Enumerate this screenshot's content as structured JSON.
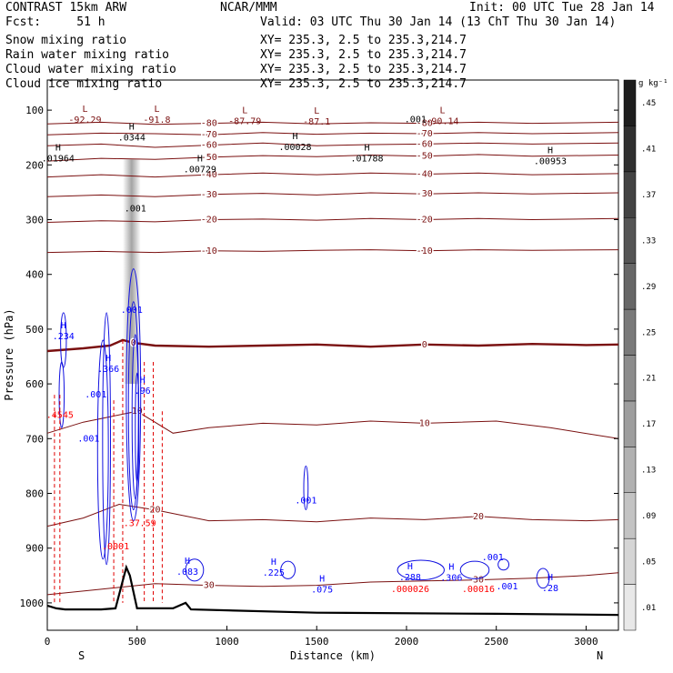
{
  "header": {
    "line1_left": "CONTRAST 15km ARW",
    "line1_center": "NCAR/MMM",
    "line1_right": "Init: 00 UTC Tue 28 Jan 14",
    "fcst": "Fcst:     51 h",
    "valid": "Valid: 03 UTC Thu 30 Jan 14 (13 ChT Thu 30 Jan 14)",
    "fields": [
      {
        "name": "Snow mixing ratio",
        "xy": "XY= 235.3,  2.5 to 235.3,214.7",
        "color": "#000000"
      },
      {
        "name": "Rain water mixing ratio",
        "xy": "XY= 235.3,  2.5 to 235.3,214.7",
        "color": "#ff0000"
      },
      {
        "name": "Cloud water mixing ratio",
        "xy": "XY= 235.3,  2.5 to 235.3,214.7",
        "color": "#0000ff"
      },
      {
        "name": "Cloud ice mixing ratio",
        "xy": "XY= 235.3,  2.5 to 235.3,214.7",
        "color": "#000000"
      }
    ]
  },
  "chart_data": {
    "type": "line",
    "title": "CONTRAST 15km ARW",
    "xlabel": "Distance (km)",
    "ylabel": "Pressure (hPa)",
    "xlim": [
      0,
      3180
    ],
    "ylim": [
      1050,
      45
    ],
    "x_ticks": [
      0,
      500,
      1000,
      1500,
      2000,
      2500,
      3000
    ],
    "y_ticks": [
      100,
      200,
      300,
      400,
      500,
      600,
      700,
      800,
      900,
      1000
    ],
    "x_end_labels": {
      "left": "S",
      "right": "N"
    },
    "colorbar": {
      "unit": "g kg⁻¹",
      "ticks": [
        ".01",
        ".05",
        ".09",
        ".13",
        ".17",
        ".21",
        ".25",
        ".29",
        ".33",
        ".37",
        ".41",
        ".45"
      ]
    },
    "temperature_isotherms": [
      {
        "label": "-80",
        "points": [
          [
            0,
            125
          ],
          [
            300,
            122
          ],
          [
            600,
            126
          ],
          [
            900,
            124
          ],
          [
            1200,
            122
          ],
          [
            1500,
            125
          ],
          [
            1800,
            123
          ],
          [
            2100,
            124
          ],
          [
            2400,
            122
          ],
          [
            2700,
            124
          ],
          [
            3180,
            122
          ]
        ]
      },
      {
        "label": "-70",
        "points": [
          [
            0,
            145
          ],
          [
            300,
            142
          ],
          [
            600,
            143
          ],
          [
            900,
            145
          ],
          [
            1200,
            141
          ],
          [
            1500,
            144
          ],
          [
            1800,
            142
          ],
          [
            2100,
            143
          ],
          [
            2400,
            141
          ],
          [
            2700,
            143
          ],
          [
            3180,
            141
          ]
        ]
      },
      {
        "label": "-60",
        "points": [
          [
            0,
            165
          ],
          [
            300,
            162
          ],
          [
            600,
            168
          ],
          [
            900,
            164
          ],
          [
            1200,
            160
          ],
          [
            1500,
            165
          ],
          [
            1800,
            163
          ],
          [
            2100,
            162
          ],
          [
            2400,
            160
          ],
          [
            2700,
            162
          ],
          [
            3180,
            160
          ]
        ]
      },
      {
        "label": "-50",
        "points": [
          [
            0,
            193
          ],
          [
            300,
            188
          ],
          [
            600,
            190
          ],
          [
            900,
            186
          ],
          [
            1200,
            183
          ],
          [
            1500,
            185
          ],
          [
            1800,
            182
          ],
          [
            2100,
            184
          ],
          [
            2400,
            181
          ],
          [
            2700,
            184
          ],
          [
            3180,
            182
          ]
        ]
      },
      {
        "label": "-40",
        "points": [
          [
            0,
            222
          ],
          [
            300,
            218
          ],
          [
            600,
            222
          ],
          [
            900,
            218
          ],
          [
            1200,
            215
          ],
          [
            1500,
            218
          ],
          [
            1800,
            215
          ],
          [
            2100,
            217
          ],
          [
            2400,
            215
          ],
          [
            2700,
            218
          ],
          [
            3180,
            216
          ]
        ]
      },
      {
        "label": "-30",
        "points": [
          [
            0,
            258
          ],
          [
            300,
            255
          ],
          [
            600,
            258
          ],
          [
            900,
            254
          ],
          [
            1200,
            252
          ],
          [
            1500,
            255
          ],
          [
            1800,
            251
          ],
          [
            2100,
            253
          ],
          [
            2400,
            251
          ],
          [
            2700,
            253
          ],
          [
            3180,
            251
          ]
        ]
      },
      {
        "label": "-20",
        "points": [
          [
            0,
            305
          ],
          [
            300,
            302
          ],
          [
            600,
            304
          ],
          [
            900,
            300
          ],
          [
            1200,
            299
          ],
          [
            1500,
            301
          ],
          [
            1800,
            298
          ],
          [
            2100,
            300
          ],
          [
            2400,
            298
          ],
          [
            2700,
            300
          ],
          [
            3180,
            298
          ]
        ]
      },
      {
        "label": "-10",
        "points": [
          [
            0,
            360
          ],
          [
            300,
            358
          ],
          [
            600,
            360
          ],
          [
            900,
            357
          ],
          [
            1200,
            358
          ],
          [
            1500,
            356
          ],
          [
            1800,
            355
          ],
          [
            2100,
            357
          ],
          [
            2400,
            355
          ],
          [
            2700,
            356
          ],
          [
            3180,
            355
          ]
        ]
      },
      {
        "label": "0",
        "points": [
          [
            0,
            540
          ],
          [
            200,
            535
          ],
          [
            350,
            530
          ],
          [
            420,
            520
          ],
          [
            480,
            525
          ],
          [
            600,
            530
          ],
          [
            900,
            532
          ],
          [
            1200,
            530
          ],
          [
            1500,
            528
          ],
          [
            1800,
            532
          ],
          [
            2100,
            528
          ],
          [
            2400,
            530
          ],
          [
            2700,
            527
          ],
          [
            3000,
            529
          ],
          [
            3180,
            528
          ]
        ]
      },
      {
        "label": "10",
        "points": [
          [
            0,
            690
          ],
          [
            200,
            670
          ],
          [
            350,
            660
          ],
          [
            500,
            650
          ],
          [
            700,
            690
          ],
          [
            900,
            680
          ],
          [
            1200,
            672
          ],
          [
            1500,
            675
          ],
          [
            1800,
            668
          ],
          [
            2100,
            672
          ],
          [
            2500,
            668
          ],
          [
            2800,
            680
          ],
          [
            3180,
            700
          ]
        ]
      },
      {
        "label": "20",
        "points": [
          [
            0,
            860
          ],
          [
            200,
            845
          ],
          [
            400,
            820
          ],
          [
            600,
            830
          ],
          [
            900,
            850
          ],
          [
            1200,
            848
          ],
          [
            1500,
            852
          ],
          [
            1800,
            845
          ],
          [
            2100,
            848
          ],
          [
            2400,
            842
          ],
          [
            2700,
            848
          ],
          [
            3000,
            850
          ],
          [
            3180,
            848
          ]
        ]
      },
      {
        "label": "30",
        "points": [
          [
            0,
            985
          ],
          [
            300,
            975
          ],
          [
            600,
            965
          ],
          [
            900,
            968
          ],
          [
            1200,
            970
          ],
          [
            1500,
            968
          ],
          [
            1800,
            962
          ],
          [
            2100,
            960
          ],
          [
            2400,
            958
          ],
          [
            2700,
            955
          ],
          [
            3000,
            950
          ],
          [
            3180,
            945
          ]
        ]
      }
    ],
    "terrain": [
      [
        0,
        1005
      ],
      [
        50,
        1010
      ],
      [
        100,
        1012
      ],
      [
        300,
        1012
      ],
      [
        380,
        1010
      ],
      [
        420,
        960
      ],
      [
        440,
        935
      ],
      [
        460,
        950
      ],
      [
        500,
        1010
      ],
      [
        700,
        1010
      ],
      [
        770,
        1000
      ],
      [
        800,
        1012
      ],
      [
        1500,
        1018
      ],
      [
        2500,
        1020
      ],
      [
        3180,
        1022
      ]
    ],
    "extremes": [
      {
        "type": "L",
        "value": "-92.29",
        "x": 210,
        "p": 110
      },
      {
        "type": "L",
        "value": "-91.8",
        "x": 610,
        "p": 110
      },
      {
        "type": "L",
        "value": "-87.79",
        "x": 1100,
        "p": 112
      },
      {
        "type": "L",
        "value": "-87.1",
        "x": 1500,
        "p": 113
      },
      {
        "type": "L",
        "value": "-90.14",
        "x": 2200,
        "p": 112
      },
      {
        "type": "H",
        "value": ".0344",
        "x": 470,
        "p": 142,
        "color": "#000000"
      },
      {
        "type": "H",
        "value": ".00028",
        "x": 1380,
        "p": 160,
        "color": "#000000"
      },
      {
        "type": "H",
        "value": ".01964",
        "x": 60,
        "p": 180,
        "color": "#000000"
      },
      {
        "type": "H",
        "value": ".00729",
        "x": 850,
        "p": 200,
        "color": "#000000"
      },
      {
        "type": "H",
        "value": ".01788",
        "x": 1780,
        "p": 180,
        "color": "#000000"
      },
      {
        "type": "H",
        "value": ".00953",
        "x": 2800,
        "p": 185,
        "color": "#000000"
      },
      {
        "type": "H",
        "value": ".234",
        "x": 90,
        "p": 505,
        "color": "#0000ff"
      },
      {
        "type": "H",
        "value": ".366",
        "x": 340,
        "p": 565,
        "color": "#0000ff"
      },
      {
        "type": "H",
        "value": ".96",
        "x": 530,
        "p": 605,
        "color": "#0000ff"
      },
      {
        "type": "H",
        "value": ".083",
        "x": 780,
        "p": 935,
        "color": "#0000ff"
      },
      {
        "type": "H",
        "value": ".225",
        "x": 1260,
        "p": 937,
        "color": "#0000ff"
      },
      {
        "type": "H",
        "value": ".075",
        "x": 1530,
        "p": 968,
        "color": "#0000ff"
      },
      {
        "type": "H",
        "value": ".288",
        "x": 2020,
        "p": 945,
        "color": "#0000ff"
      },
      {
        "type": "H",
        "value": ".306",
        "x": 2250,
        "p": 946,
        "color": "#0000ff"
      },
      {
        "type": "H",
        "value": ".28",
        "x": 2800,
        "p": 965,
        "color": "#0000ff"
      }
    ],
    "contour_labels": [
      {
        "text": ".001",
        "x": 2050,
        "p": 122,
        "color": "#000000"
      },
      {
        "text": ".001",
        "x": 490,
        "p": 285,
        "color": "#000000"
      },
      {
        "text": ".001",
        "x": 470,
        "p": 470,
        "color": "#0000ff"
      },
      {
        "text": ".001",
        "x": 270,
        "p": 625,
        "color": "#0000ff"
      },
      {
        "text": ".001",
        "x": 230,
        "p": 705,
        "color": "#0000ff"
      },
      {
        "text": ".001",
        "x": 1440,
        "p": 818,
        "color": "#0000ff"
      },
      {
        "text": ".001",
        "x": 2480,
        "p": 922,
        "color": "#0000ff"
      },
      {
        "text": ".001",
        "x": 2560,
        "p": 975,
        "color": "#0000ff"
      },
      {
        "text": ".0001",
        "x": 380,
        "p": 902,
        "color": "#ff0000"
      },
      {
        "text": ".4545",
        "x": 70,
        "p": 662,
        "color": "#ff0000"
      },
      {
        "text": ".000026",
        "x": 2020,
        "p": 980,
        "color": "#ff0000"
      },
      {
        "text": ".00016",
        "x": 2400,
        "p": 980,
        "color": "#ff0000"
      },
      {
        "text": ".37",
        "x": 470,
        "p": 860,
        "color": "#ff0000"
      },
      {
        "text": ".59",
        "x": 560,
        "p": 860,
        "color": "#ff0000"
      }
    ]
  }
}
